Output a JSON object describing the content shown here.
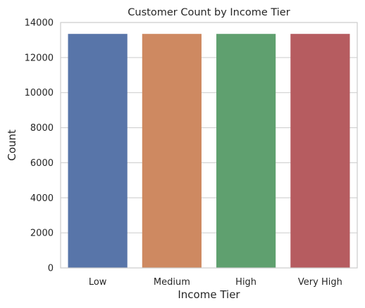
{
  "chart_data": {
    "type": "bar",
    "title": "Customer Count by Income Tier",
    "xlabel": "Income Tier",
    "ylabel": "Count",
    "categories": [
      "Low",
      "Medium",
      "High",
      "Very High"
    ],
    "values": [
      13350,
      13350,
      13350,
      13350
    ],
    "colors": [
      "#5875a9",
      "#ce8961",
      "#5fa06f",
      "#b65c60"
    ],
    "ylim": [
      0,
      14000
    ],
    "yticks": [
      0,
      2000,
      4000,
      6000,
      8000,
      10000,
      12000,
      14000
    ],
    "grid": true,
    "grid_axis": "y",
    "legend": "none"
  }
}
